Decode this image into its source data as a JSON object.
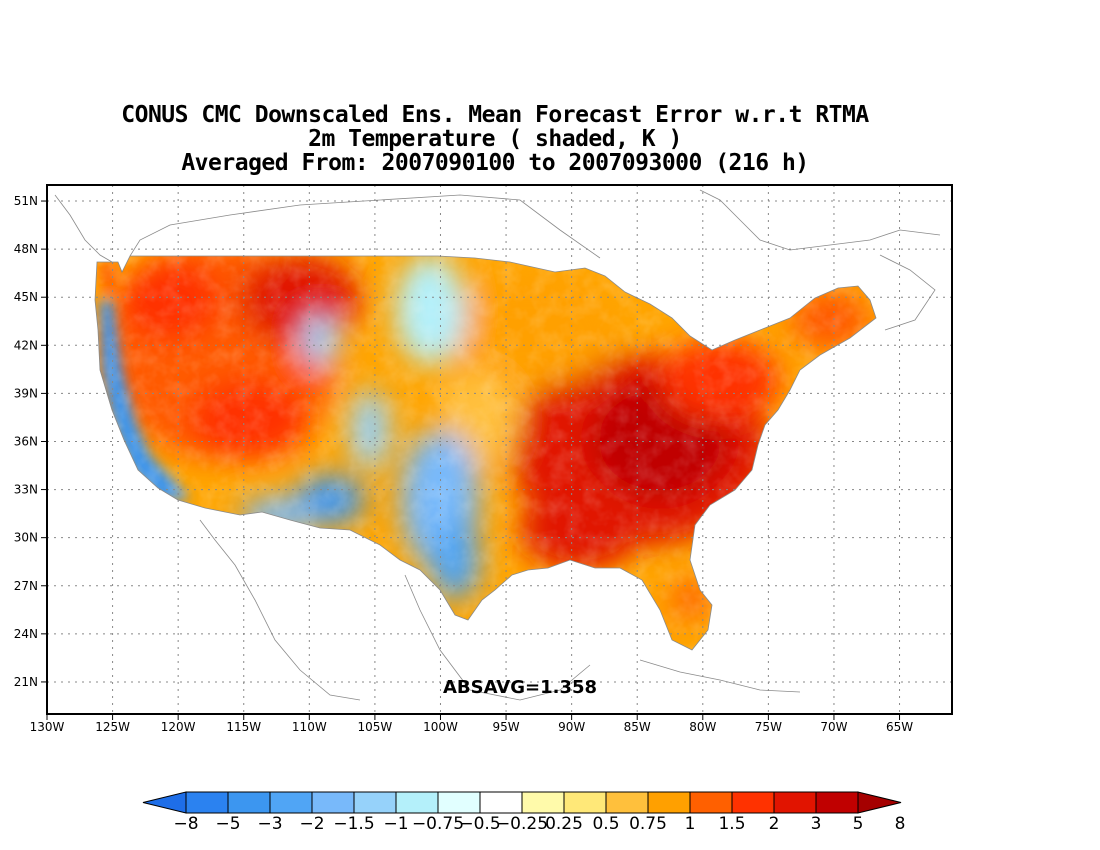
{
  "title": {
    "line1": "CONUS CMC Downscaled Ens. Mean Forecast Error w.r.t RTMA",
    "line2": "2m Temperature ( shaded, K )",
    "line3": "Averaged From: 2007090100 to 2007093000 (216 h)"
  },
  "map": {
    "projection": "lat-lon",
    "lon_range": [
      -130,
      -61
    ],
    "lat_range": [
      19,
      52
    ],
    "gridlines": "dotted",
    "x_ticks": [
      "130W",
      "125W",
      "120W",
      "115W",
      "110W",
      "105W",
      "100W",
      "95W",
      "90W",
      "85W",
      "80W",
      "75W",
      "70W",
      "65W"
    ],
    "y_ticks": [
      "51N",
      "48N",
      "45N",
      "42N",
      "39N",
      "36N",
      "33N",
      "30N",
      "27N",
      "24N",
      "21N"
    ],
    "stat_label": "ABSAVG=1.358",
    "field_description": "2m temperature forecast error; warm (positive) bias over most of CONUS, strongest over southeast/Mississippi valley; cool (negative) bias along California coast and in Texas/southwest"
  },
  "colorbar": {
    "labels": [
      "−8",
      "−5",
      "−3",
      "−2",
      "−1.5",
      "−1",
      "−0.75",
      "−0.5",
      "−0.25",
      "0.25",
      "0.5",
      "0.75",
      "1",
      "1.5",
      "2",
      "3",
      "5",
      "8"
    ],
    "colors": [
      "#1e6ee8",
      "#2b82f0",
      "#3c96f0",
      "#50a5f5",
      "#78b9fa",
      "#96d2fa",
      "#b4f0fa",
      "#e1ffff",
      "#ffffff",
      "#fffaaa",
      "#ffe878",
      "#ffc03c",
      "#ffa000",
      "#ff6000",
      "#ff3200",
      "#e11400",
      "#c00000",
      "#a50000"
    ]
  }
}
